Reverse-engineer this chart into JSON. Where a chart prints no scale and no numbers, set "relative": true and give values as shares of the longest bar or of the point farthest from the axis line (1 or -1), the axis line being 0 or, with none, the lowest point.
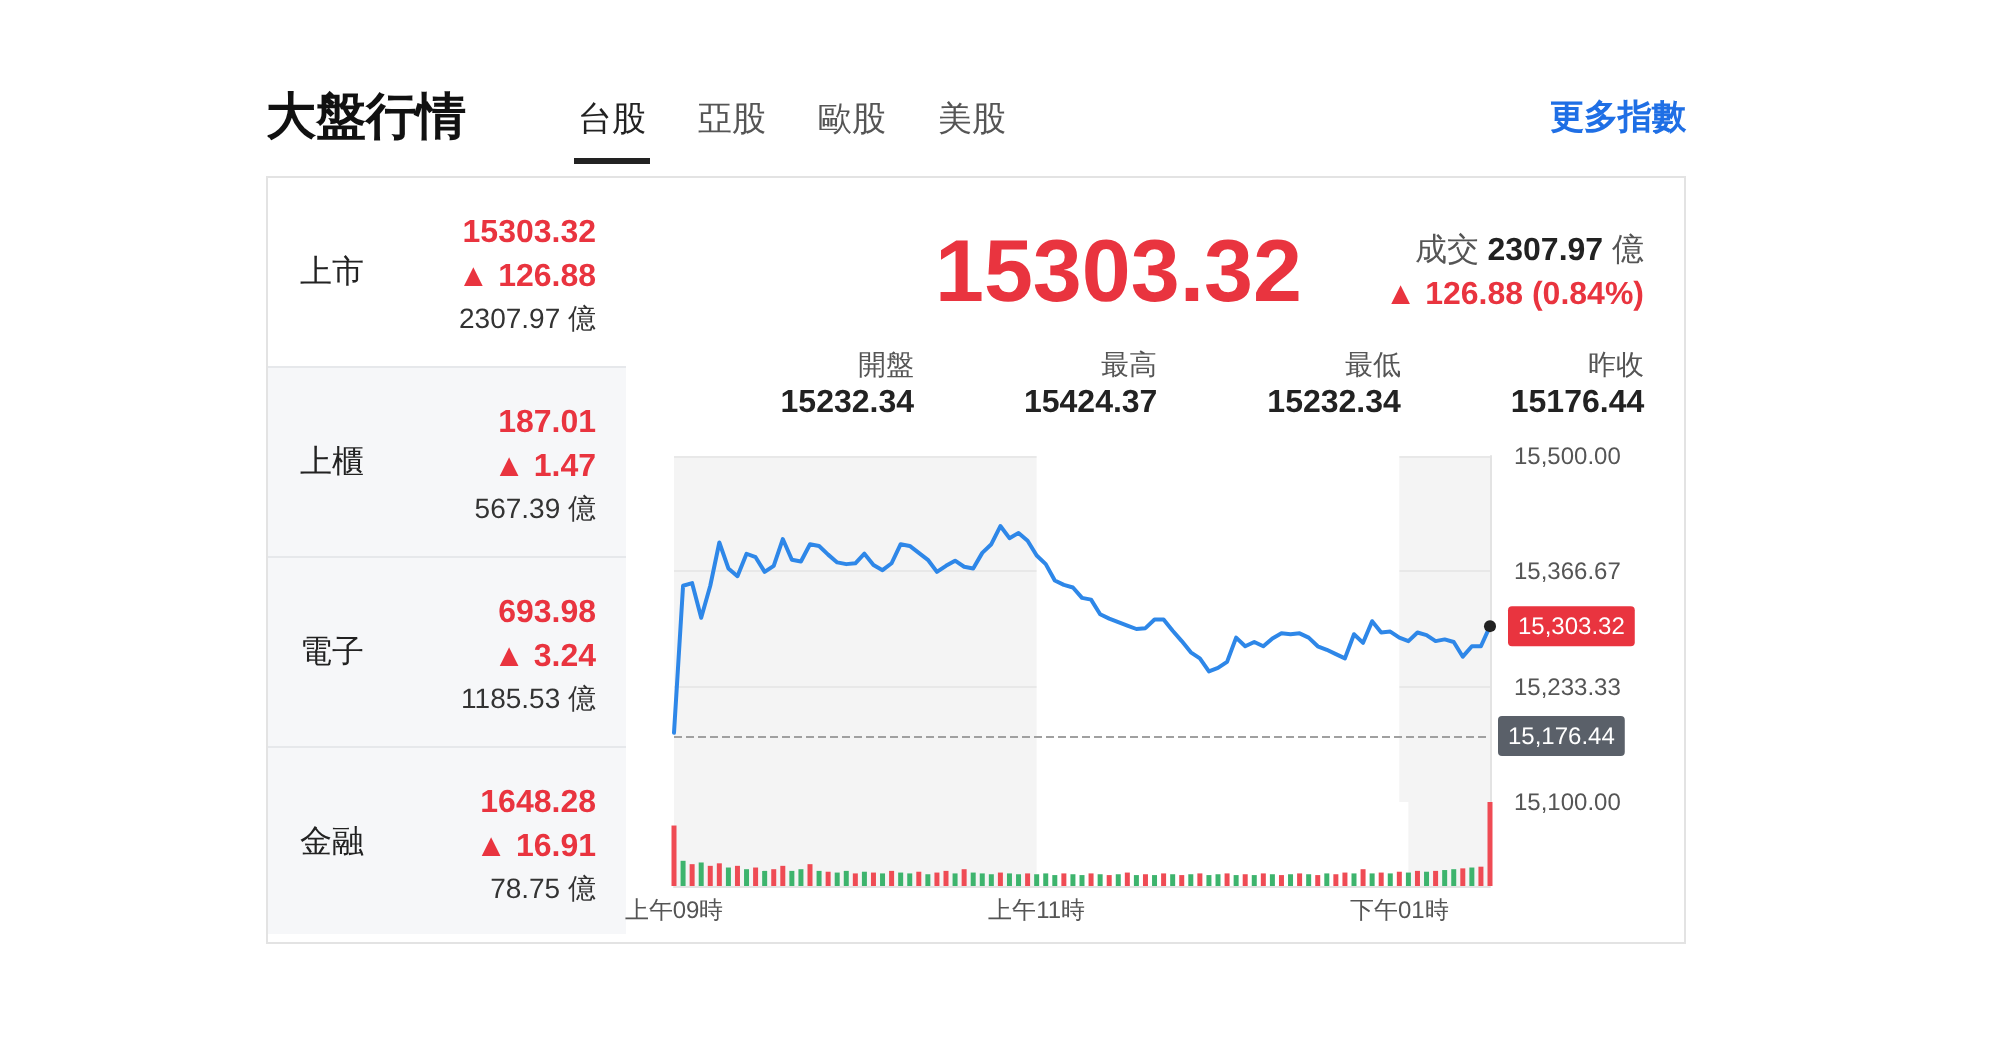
{
  "chart_data": [
    {
      "type": "line",
      "title": "大盤行情",
      "categories": [
        "上午09時",
        null,
        null,
        null,
        null,
        null,
        null,
        null,
        null,
        null,
        null,
        null,
        null,
        null,
        null,
        null,
        null,
        null,
        null,
        null,
        null,
        null,
        null,
        null,
        null,
        null,
        null,
        null,
        null,
        null,
        null,
        null,
        null,
        null,
        null,
        null,
        null,
        null,
        null,
        null,
        "上午11時",
        null,
        null,
        null,
        null,
        null,
        null,
        null,
        null,
        null,
        null,
        null,
        null,
        null,
        null,
        null,
        null,
        null,
        null,
        null,
        null,
        null,
        null,
        null,
        null,
        null,
        null,
        null,
        null,
        null,
        null,
        null,
        null,
        null,
        null,
        null,
        null,
        null,
        null,
        null,
        "下午01時",
        null,
        null,
        null,
        null,
        null,
        null,
        null,
        null,
        null,
        null
      ],
      "series": [
        {
          "color": "#2e87e8",
          "values": [
            15180,
            15350,
            15353,
            15313,
            15350,
            15400,
            15370,
            15361,
            15387,
            15383,
            15366,
            15373,
            15404,
            15380,
            15378,
            15398,
            15396,
            15386,
            15377,
            15375,
            15376,
            15387,
            15374,
            15368,
            15376,
            15398,
            15396,
            15388,
            15380,
            15366,
            15373,
            15379,
            15372,
            15370,
            15388,
            15398,
            15419,
            15405,
            15411,
            15402,
            15385,
            15375,
            15356,
            15351,
            15348,
            15336,
            15334,
            15317,
            15312,
            15308,
            15304,
            15300,
            15301,
            15311,
            15311,
            15298,
            15286,
            15273,
            15266,
            15251,
            15255,
            15262,
            15290,
            15280,
            15285,
            15280,
            15289,
            15295,
            15294,
            15295,
            15290,
            15280,
            15276,
            15271,
            15266,
            15294,
            15284,
            15309,
            15296,
            15297,
            15290,
            15286,
            15296,
            15293,
            15286,
            15288,
            15285,
            15268,
            15280,
            15280,
            15303.32
          ]
        }
      ],
      "ylim": [
        15100,
        15500
      ],
      "yticks": [
        {
          "value": 15100,
          "label": "15,100.00"
        },
        {
          "value": 15233.33,
          "label": "15,233.33"
        },
        {
          "value": 15366.67,
          "label": "15,366.67"
        },
        {
          "value": 15500,
          "label": "15,500.00"
        }
      ],
      "grid": "y",
      "tick_labels": "y",
      "marker": "none",
      "line_style": "solid",
      "bands": [
        {
          "axis": "x",
          "from": "上午11時",
          "to": "下午01時",
          "color": "#ffffff"
        }
      ],
      "ref_lines": [
        {
          "axis": "y",
          "value": 15176.44,
          "label": "15,176.44",
          "color": "#a0a0a0",
          "line_style": "dashed"
        }
      ],
      "annotations": [
        "台股",
        "亞股",
        "歐股",
        "美股",
        "更多指數",
        "上市",
        "15303.32",
        "▲ 126.88",
        "2307.97 億",
        "上櫃",
        "187.01",
        "▲ 1.47",
        "567.39 億",
        "電子",
        "693.98",
        "▲ 3.24",
        "1185.53 億",
        "金融",
        "1648.28",
        "▲ 16.91",
        "78.75 億",
        "15303.32",
        "成交 2307.97 億",
        "▲ 126.88 (0.84%)",
        "開盤",
        "最高",
        "最低",
        "昨收",
        "15232.34",
        "15424.37",
        "15232.34",
        "15176.44",
        "15,303.32"
      ]
    },
    {
      "type": "bar",
      "relative": true,
      "categories": [
        "上午09時",
        null,
        null,
        null,
        null,
        null,
        null,
        null,
        null,
        null,
        null,
        null,
        null,
        null,
        null,
        null,
        null,
        null,
        null,
        null,
        null,
        null,
        null,
        null,
        null,
        null,
        null,
        null,
        null,
        null,
        null,
        null,
        null,
        null,
        null,
        null,
        null,
        null,
        null,
        null,
        "上午11時",
        null,
        null,
        null,
        null,
        null,
        null,
        null,
        null,
        null,
        null,
        null,
        null,
        null,
        null,
        null,
        null,
        null,
        null,
        null,
        null,
        null,
        null,
        null,
        null,
        null,
        null,
        null,
        null,
        null,
        null,
        null,
        null,
        null,
        null,
        null,
        null,
        null,
        null,
        null,
        "下午01時",
        null,
        null,
        null,
        null,
        null,
        null,
        null,
        null,
        null,
        null
      ],
      "values": [
        0.72,
        0.3,
        0.26,
        0.28,
        0.24,
        0.27,
        0.22,
        0.24,
        0.2,
        0.22,
        0.18,
        0.2,
        0.24,
        0.18,
        0.2,
        0.26,
        0.18,
        0.17,
        0.16,
        0.18,
        0.15,
        0.17,
        0.16,
        0.15,
        0.18,
        0.16,
        0.15,
        0.17,
        0.14,
        0.16,
        0.18,
        0.15,
        0.2,
        0.16,
        0.15,
        0.14,
        0.16,
        0.15,
        0.14,
        0.15,
        0.14,
        0.15,
        0.13,
        0.15,
        0.14,
        0.13,
        0.15,
        0.14,
        0.13,
        0.14,
        0.16,
        0.13,
        0.14,
        0.13,
        0.15,
        0.14,
        0.13,
        0.14,
        0.15,
        0.13,
        0.14,
        0.15,
        0.13,
        0.14,
        0.13,
        0.15,
        0.14,
        0.13,
        0.14,
        0.15,
        0.14,
        0.13,
        0.15,
        0.14,
        0.16,
        0.15,
        0.2,
        0.15,
        0.16,
        0.15,
        0.17,
        0.16,
        0.18,
        0.17,
        0.18,
        0.19,
        0.2,
        0.21,
        0.22,
        0.23,
        1
      ],
      "colors": [
        "#ef4b54",
        "#3db46d",
        "#ef4b54",
        "#3db46d",
        "#ef4b54",
        "#ef4b54",
        "#3db46d",
        "#ef4b54",
        "#3db46d",
        "#ef4b54",
        "#3db46d",
        "#ef4b54",
        "#ef4b54",
        "#3db46d",
        "#3db46d",
        "#ef4b54",
        "#3db46d",
        "#ef4b54",
        "#3db46d",
        "#3db46d",
        "#ef4b54",
        "#3db46d",
        "#ef4b54",
        "#3db46d",
        "#ef4b54",
        "#3db46d",
        "#3db46d",
        "#ef4b54",
        "#3db46d",
        "#ef4b54",
        "#ef4b54",
        "#3db46d",
        "#ef4b54",
        "#3db46d",
        "#3db46d",
        "#3db46d",
        "#ef4b54",
        "#3db46d",
        "#3db46d",
        "#ef4b54",
        "#3db46d",
        "#3db46d",
        "#3db46d",
        "#ef4b54",
        "#3db46d",
        "#3db46d",
        "#ef4b54",
        "#3db46d",
        "#ef4b54",
        "#3db46d",
        "#ef4b54",
        "#3db46d",
        "#ef4b54",
        "#3db46d",
        "#ef4b54",
        "#3db46d",
        "#ef4b54",
        "#3db46d",
        "#ef4b54",
        "#3db46d",
        "#3db46d",
        "#ef4b54",
        "#3db46d",
        "#ef4b54",
        "#3db46d",
        "#ef4b54",
        "#3db46d",
        "#ef4b54",
        "#3db46d",
        "#ef4b54",
        "#3db46d",
        "#ef4b54",
        "#3db46d",
        "#ef4b54",
        "#ef4b54",
        "#3db46d",
        "#ef4b54",
        "#3db46d",
        "#ef4b54",
        "#3db46d",
        "#ef4b54",
        "#3db46d",
        "#ef4b54",
        "#3db46d",
        "#ef4b54",
        "#3db46d",
        "#3db46d",
        "#ef4b54",
        "#3db46d",
        "#ef4b54",
        "#ef4b54"
      ],
      "tick_labels": "x",
      "bands": [
        {
          "axis": "x",
          "from": "上午11時",
          "to": "下午01時",
          "color": "#ffffff"
        }
      ]
    }
  ]
}
